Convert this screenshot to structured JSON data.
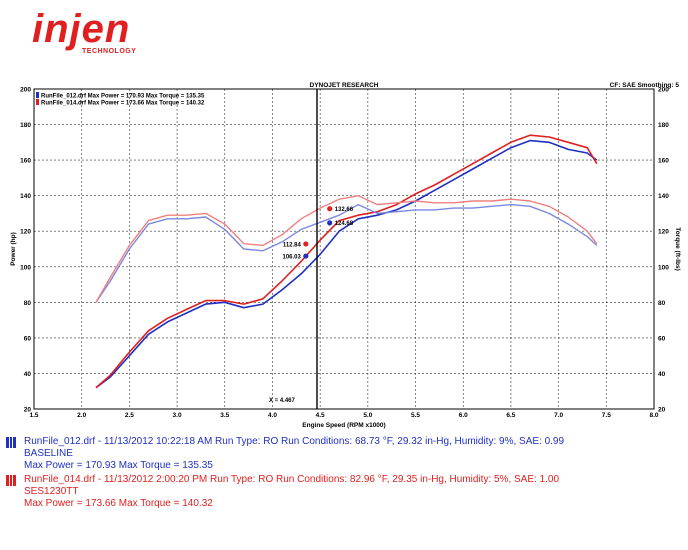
{
  "logo": {
    "brand": "injen",
    "tagline": "TECHNOLOGY",
    "color": "#e02020"
  },
  "chart_data": {
    "type": "line",
    "title": "DYNOJET RESEARCH",
    "top_right_note": "CF: SAE  Smoothing: 5",
    "xlabel": "Engine Speed (RPM x1000)",
    "ylabel_left": "Power (hp)",
    "ylabel_right": "Torque (ft-lbs)",
    "xlim": [
      1.5,
      8.0
    ],
    "ylim": [
      20,
      200
    ],
    "x_ticks": [
      "1.5",
      "2.0",
      "2.5",
      "3.0",
      "3.5",
      "4.0",
      "4.5",
      "5.0",
      "5.5",
      "6.0",
      "6.5",
      "7.0",
      "7.5",
      "8.0"
    ],
    "y_ticks": [
      "20",
      "40",
      "60",
      "80",
      "100",
      "120",
      "140",
      "160",
      "180",
      "200"
    ],
    "grid": true,
    "inner_legend": [
      {
        "label": "RunFile_012.drf Max Power = 170.93   Max Torque = 135.35",
        "color": "#2030c0"
      },
      {
        "label": "RunFile_014.drf Max Power = 173.66   Max Torque = 140.32",
        "color": "#e02020"
      }
    ],
    "cursor": {
      "x": 4.467,
      "label": "X = 4.467"
    },
    "markers": [
      {
        "label": "132.66",
        "x": 4.6,
        "y": 132.66,
        "color": "#e02020"
      },
      {
        "label": "124.68",
        "x": 4.6,
        "y": 124.68,
        "color": "#2030c0"
      },
      {
        "label": "112.84",
        "x": 4.35,
        "y": 112.84,
        "color": "#e02020"
      },
      {
        "label": "106.03",
        "x": 4.35,
        "y": 106.03,
        "color": "#2030c0"
      }
    ],
    "series": [
      {
        "name": "RunFile_012.drf",
        "kind": "power",
        "color": "#2030c0",
        "x": [
          2.15,
          2.3,
          2.5,
          2.7,
          2.9,
          3.1,
          3.3,
          3.5,
          3.7,
          3.9,
          4.1,
          4.3,
          4.5,
          4.7,
          4.9,
          5.1,
          5.3,
          5.5,
          5.7,
          5.9,
          6.1,
          6.3,
          6.5,
          6.7,
          6.9,
          7.1,
          7.3,
          7.4
        ],
        "y": [
          32,
          38,
          50,
          62,
          69,
          74,
          79,
          80,
          77,
          79,
          87,
          96,
          107,
          120,
          127,
          129,
          132,
          137,
          143,
          149,
          155,
          161,
          167,
          171,
          170,
          166,
          164,
          160
        ]
      },
      {
        "name": "RunFile_014.drf",
        "kind": "power",
        "color": "#e02020",
        "x": [
          2.15,
          2.3,
          2.5,
          2.7,
          2.9,
          3.1,
          3.3,
          3.5,
          3.7,
          3.9,
          4.1,
          4.3,
          4.5,
          4.7,
          4.9,
          5.1,
          5.3,
          5.5,
          5.7,
          5.9,
          6.1,
          6.3,
          6.5,
          6.7,
          6.9,
          7.1,
          7.3,
          7.4
        ],
        "y": [
          32,
          39,
          52,
          64,
          71,
          76,
          81,
          81,
          79,
          82,
          92,
          103,
          115,
          126,
          129,
          131,
          135,
          141,
          146,
          152,
          158,
          164,
          170,
          174,
          173,
          170,
          167,
          158
        ]
      },
      {
        "name": "RunFile_012.drf",
        "kind": "torque",
        "color": "#7a88e0",
        "x": [
          2.15,
          2.3,
          2.5,
          2.7,
          2.9,
          3.1,
          3.3,
          3.5,
          3.7,
          3.9,
          4.1,
          4.3,
          4.5,
          4.7,
          4.9,
          5.1,
          5.3,
          5.5,
          5.7,
          5.9,
          6.1,
          6.3,
          6.5,
          6.7,
          6.9,
          7.1,
          7.3,
          7.4
        ],
        "y": [
          80,
          92,
          110,
          124,
          127,
          127,
          128,
          121,
          110,
          109,
          114,
          121,
          125,
          129,
          135,
          130,
          131,
          132,
          132,
          133,
          133,
          134,
          135,
          134,
          130,
          124,
          117,
          112
        ]
      },
      {
        "name": "RunFile_014.drf",
        "kind": "torque",
        "color": "#f08080",
        "x": [
          2.15,
          2.3,
          2.5,
          2.7,
          2.9,
          3.1,
          3.3,
          3.5,
          3.7,
          3.9,
          4.1,
          4.3,
          4.5,
          4.7,
          4.9,
          5.1,
          5.3,
          5.5,
          5.7,
          5.9,
          6.1,
          6.3,
          6.5,
          6.7,
          6.9,
          7.1,
          7.3,
          7.4
        ],
        "y": [
          80,
          94,
          112,
          126,
          129,
          129,
          130,
          124,
          113,
          112,
          118,
          127,
          133,
          138,
          140,
          135,
          136,
          137,
          136,
          136,
          137,
          137,
          138,
          137,
          134,
          128,
          120,
          113
        ]
      }
    ]
  },
  "run_legend": [
    {
      "line1": "RunFile_012.drf - 11/13/2012 10:22:18 AM  Run Type: RO  Run Conditions: 68.73 °F, 29.32 in-Hg,  Humidity:  9%, SAE: 0.99",
      "line2": "BASELINE",
      "line3": "Max Power = 170.93  Max Torque = 135.35",
      "color": "#2030c0"
    },
    {
      "line1": "RunFile_014.drf - 11/13/2012 2:00:20 PM  Run Type: RO  Run Conditions: 82.96 °F, 29.35 in-Hg,  Humidity:  5%, SAE: 1.00",
      "line2": "SES1230TT",
      "line3": "Max Power = 173.66  Max Torque = 140.32",
      "color": "#e02020"
    }
  ]
}
